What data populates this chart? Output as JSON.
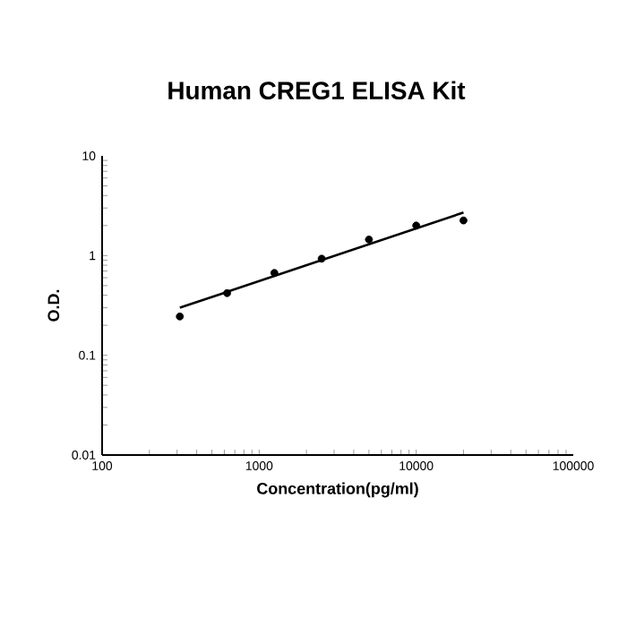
{
  "chart_data": {
    "type": "scatter",
    "title": "Human CREG1 ELISA Kit",
    "xlabel": "Concentration(pg/ml)",
    "ylabel": "O.D.",
    "log": "xy",
    "grid": false,
    "xlim": [
      100,
      100000
    ],
    "xticks": [
      100,
      1000,
      10000,
      100000
    ],
    "ylim": [
      0.01,
      10
    ],
    "yticks": [
      0.01,
      0.1,
      1,
      10
    ],
    "series": [
      {
        "marker": "circle",
        "color": "#000000",
        "x": [
          312.5,
          625,
          1250,
          2500,
          5000,
          10000,
          20000
        ],
        "values": [
          0.245,
          0.42,
          0.67,
          0.93,
          1.45,
          2.0,
          2.25
        ]
      },
      {
        "type": "line",
        "marker": "none",
        "color": "#000000",
        "x": [
          312.5,
          20000
        ],
        "values": [
          0.3,
          2.7
        ]
      }
    ]
  }
}
